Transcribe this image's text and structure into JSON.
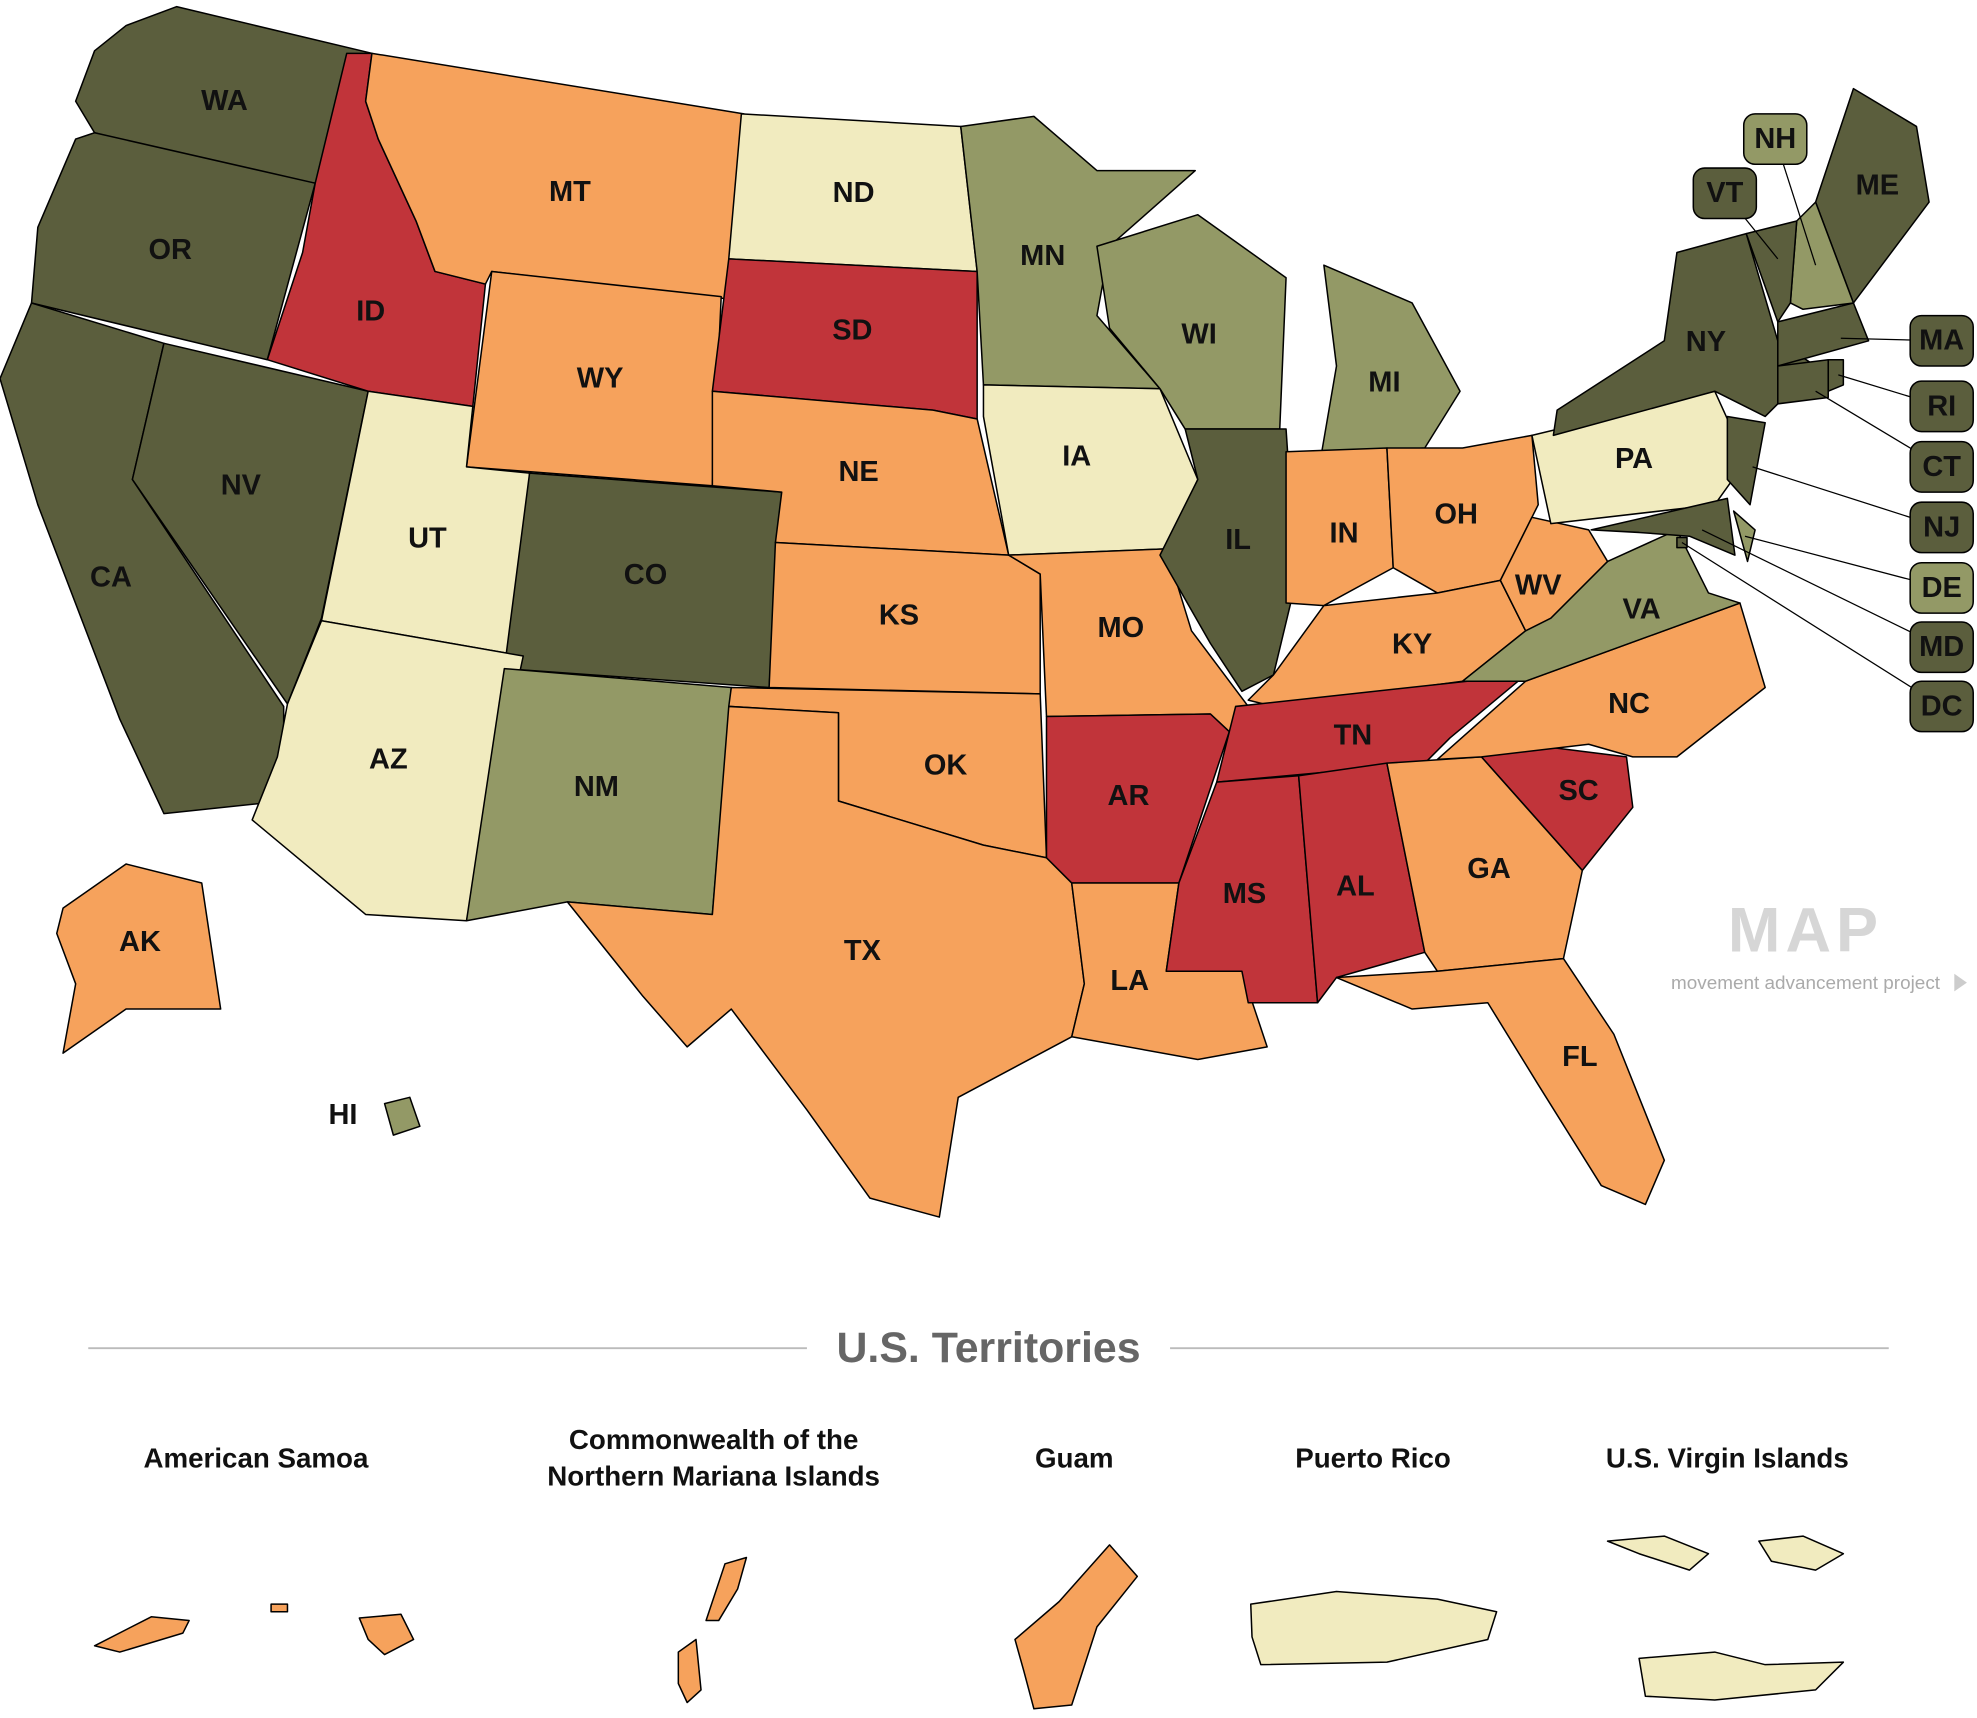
{
  "states": [
    {
      "label": "WA",
      "color": "#5b5e3d"
    },
    {
      "label": "OR",
      "color": "#5b5e3d"
    },
    {
      "label": "CA",
      "color": "#5b5e3d"
    },
    {
      "label": "NV",
      "color": "#5b5e3d"
    },
    {
      "label": "ID",
      "color": "#c1343a"
    },
    {
      "label": "MT",
      "color": "#f6a25c"
    },
    {
      "label": "WY",
      "color": "#f6a25c"
    },
    {
      "label": "UT",
      "color": "#f1ebbf"
    },
    {
      "label": "CO",
      "color": "#5b5e3d"
    },
    {
      "label": "AZ",
      "color": "#f1ebbf"
    },
    {
      "label": "NM",
      "color": "#939966"
    },
    {
      "label": "ND",
      "color": "#f1ebbf"
    },
    {
      "label": "SD",
      "color": "#c1343a"
    },
    {
      "label": "NE",
      "color": "#f6a25c"
    },
    {
      "label": "KS",
      "color": "#f6a25c"
    },
    {
      "label": "OK",
      "color": "#f6a25c"
    },
    {
      "label": "TX",
      "color": "#f6a25c"
    },
    {
      "label": "MN",
      "color": "#939966"
    },
    {
      "label": "IA",
      "color": "#f1ebbf"
    },
    {
      "label": "MO",
      "color": "#f6a25c"
    },
    {
      "label": "AR",
      "color": "#c1343a"
    },
    {
      "label": "LA",
      "color": "#f6a25c"
    },
    {
      "label": "WI",
      "color": "#939966"
    },
    {
      "label": "IL",
      "color": "#5b5e3d"
    },
    {
      "label": "MI",
      "color": "#939966"
    },
    {
      "label": "IN",
      "color": "#f6a25c"
    },
    {
      "label": "OH",
      "color": "#f6a25c"
    },
    {
      "label": "KY",
      "color": "#f6a25c"
    },
    {
      "label": "TN",
      "color": "#c1343a"
    },
    {
      "label": "MS",
      "color": "#c1343a"
    },
    {
      "label": "AL",
      "color": "#c1343a"
    },
    {
      "label": "GA",
      "color": "#f6a25c"
    },
    {
      "label": "FL",
      "color": "#f6a25c"
    },
    {
      "label": "SC",
      "color": "#c1343a"
    },
    {
      "label": "NC",
      "color": "#f6a25c"
    },
    {
      "label": "VA",
      "color": "#939966"
    },
    {
      "label": "WV",
      "color": "#f6a25c"
    },
    {
      "label": "PA",
      "color": "#f1ebbf"
    },
    {
      "label": "NY",
      "color": "#5b5e3d"
    },
    {
      "label": "ME",
      "color": "#5b5e3d"
    },
    {
      "label": "AK",
      "color": "#f6a25c"
    },
    {
      "label": "HI",
      "color": "#939966"
    },
    {
      "label": "NH",
      "color": "#939966"
    },
    {
      "label": "VT",
      "color": "#5b5e3d"
    },
    {
      "label": "MA",
      "color": "#5b5e3d"
    },
    {
      "label": "RI",
      "color": "#5b5e3d"
    },
    {
      "label": "CT",
      "color": "#5b5e3d"
    },
    {
      "label": "NJ",
      "color": "#5b5e3d"
    },
    {
      "label": "DE",
      "color": "#939966"
    },
    {
      "label": "MD",
      "color": "#5b5e3d"
    },
    {
      "label": "DC",
      "color": "#5b5e3d"
    }
  ],
  "territories_title": "U.S. Territories",
  "territories": [
    {
      "name": [
        "American Samoa"
      ],
      "color": "#f6a25c"
    },
    {
      "name": [
        "Commonwealth of the",
        "Northern Mariana Islands"
      ],
      "color": "#f6a25c"
    },
    {
      "name": [
        "Guam"
      ],
      "color": "#f6a25c"
    },
    {
      "name": [
        "Puerto Rico"
      ],
      "color": "#f1ebbf"
    },
    {
      "name": [
        "U.S. Virgin Islands"
      ],
      "color": "#f1ebbf"
    }
  ],
  "logo": {
    "mark": "MAP",
    "text": "movement advancement project"
  }
}
